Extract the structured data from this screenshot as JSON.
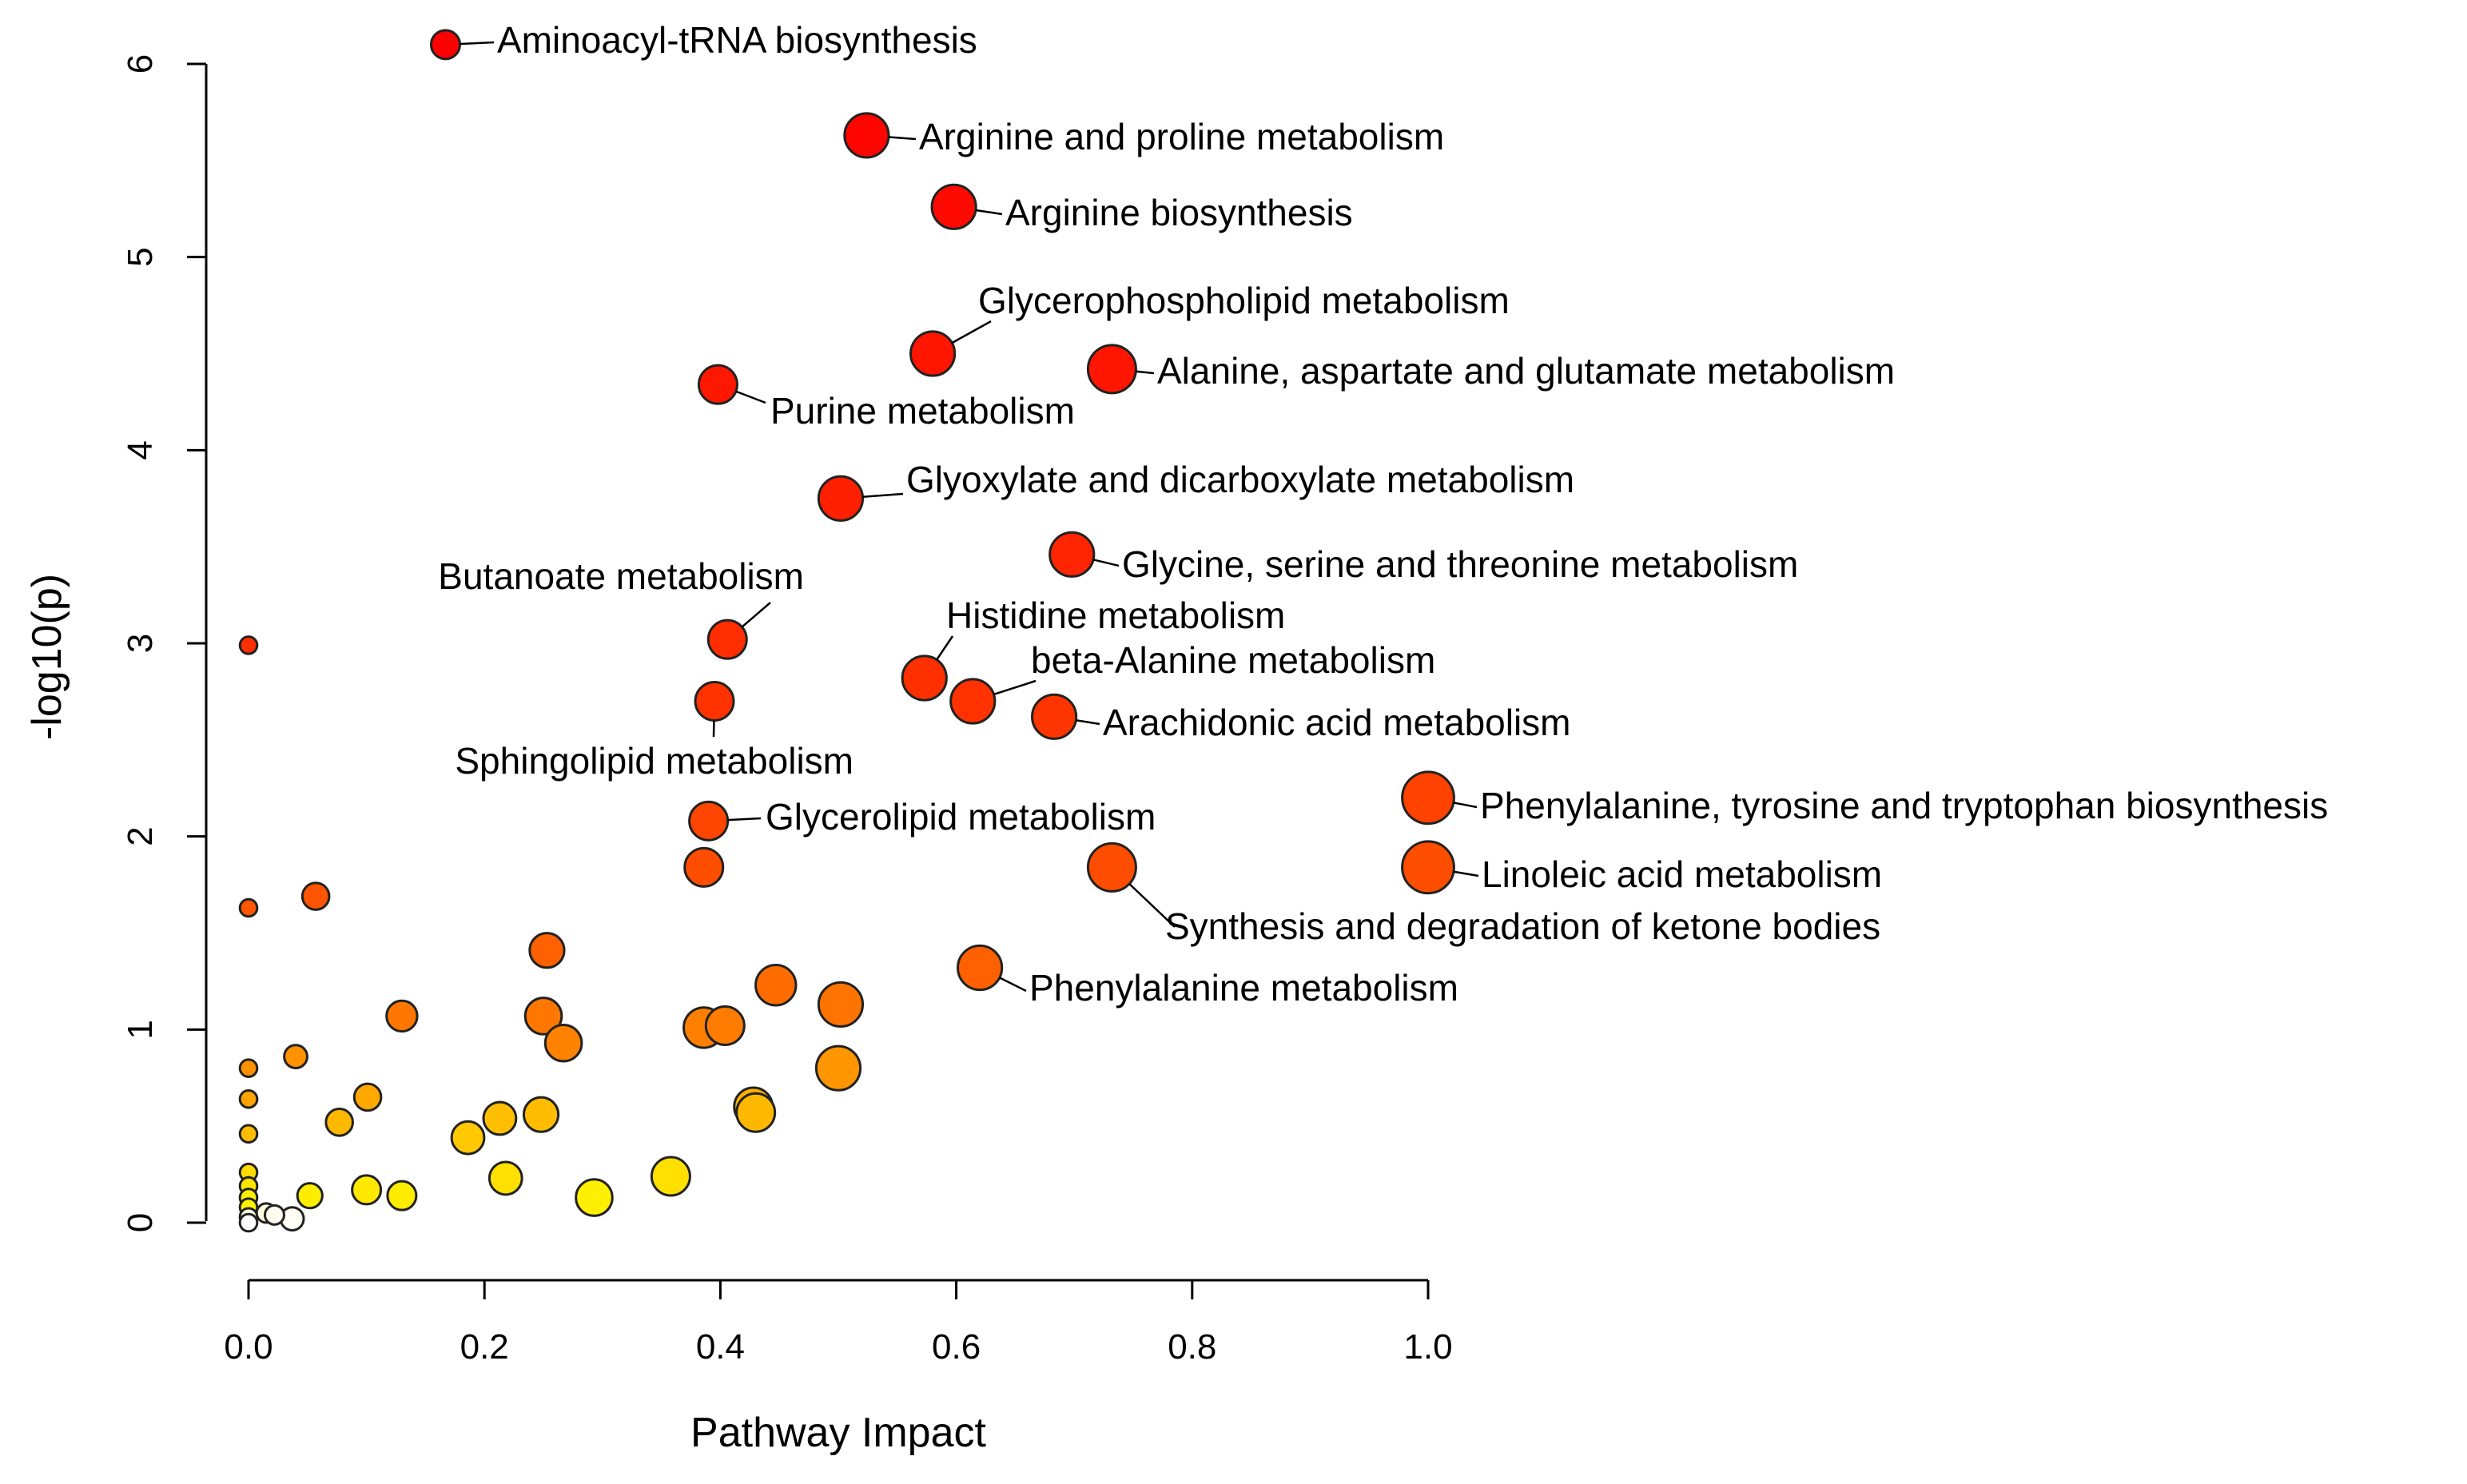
{
  "chart_data": {
    "type": "scatter",
    "title": "",
    "xlabel": "Pathway Impact",
    "ylabel": "-log10(p)",
    "xlim": [
      0,
      1
    ],
    "ylim": [
      0,
      6
    ],
    "x_ticks": [
      "0.0",
      "0.2",
      "0.4",
      "0.6",
      "0.8",
      "1.0"
    ],
    "y_ticks": [
      "0",
      "1",
      "2",
      "3",
      "4",
      "5",
      "6"
    ],
    "grid": false,
    "legend": "none",
    "labeled_points": [
      {
        "name": "Aminoacyl-tRNA biosynthesis",
        "x": 0.167,
        "y": 6.1,
        "size": 1.5,
        "color": "#ff0000"
      },
      {
        "name": "Arginine and proline metabolism",
        "x": 0.524,
        "y": 5.63,
        "size": 2.3,
        "color": "#ff0500"
      },
      {
        "name": "Arginine biosynthesis",
        "x": 0.598,
        "y": 5.26,
        "size": 2.3,
        "color": "#ff0a00"
      },
      {
        "name": "Glycerophospholipid metabolism",
        "x": 0.58,
        "y": 4.5,
        "size": 2.3,
        "color": "#ff1500"
      },
      {
        "name": "Alanine, aspartate and glutamate metabolism",
        "x": 0.732,
        "y": 4.42,
        "size": 2.5,
        "color": "#ff1500"
      },
      {
        "name": "Purine metabolism",
        "x": 0.398,
        "y": 4.34,
        "size": 2.0,
        "color": "#ff1700"
      },
      {
        "name": "Glyoxylate and dicarboxylate metabolism",
        "x": 0.502,
        "y": 3.75,
        "size": 2.3,
        "color": "#ff2000"
      },
      {
        "name": "Glycine, serine and threonine metabolism",
        "x": 0.698,
        "y": 3.46,
        "size": 2.3,
        "color": "#ff2500"
      },
      {
        "name": "Butanoate metabolism",
        "x": 0.406,
        "y": 3.02,
        "size": 2.0,
        "color": "#ff2d00"
      },
      {
        "name": "Histidine metabolism",
        "x": 0.573,
        "y": 2.82,
        "size": 2.3,
        "color": "#ff3000"
      },
      {
        "name": "beta-Alanine metabolism",
        "x": 0.614,
        "y": 2.7,
        "size": 2.3,
        "color": "#ff3200"
      },
      {
        "name": "Sphingolipid metabolism",
        "x": 0.395,
        "y": 2.7,
        "size": 2.0,
        "color": "#ff3200"
      },
      {
        "name": "Arachidonic acid metabolism",
        "x": 0.683,
        "y": 2.62,
        "size": 2.3,
        "color": "#ff3500"
      },
      {
        "name": "Phenylalanine, tyrosine and tryptophan biosynthesis",
        "x": 1.0,
        "y": 2.2,
        "size": 2.7,
        "color": "#ff4200"
      },
      {
        "name": "Glycerolipid metabolism",
        "x": 0.39,
        "y": 2.08,
        "size": 2.0,
        "color": "#ff4500"
      },
      {
        "name": "Linoleic acid metabolism",
        "x": 1.0,
        "y": 1.84,
        "size": 2.7,
        "color": "#ff4d00"
      },
      {
        "name": "Synthesis and degradation of ketone bodies",
        "x": 0.732,
        "y": 1.84,
        "size": 2.5,
        "color": "#ff4d00"
      },
      {
        "name": "Phenylalanine metabolism",
        "x": 0.62,
        "y": 1.32,
        "size": 2.3,
        "color": "#ff6100"
      }
    ],
    "unlabeled_points": [
      {
        "x": 0.0,
        "y": 2.99,
        "size": 0.9,
        "color": "#ff2e00"
      },
      {
        "x": 0.386,
        "y": 1.84,
        "size": 2.0,
        "color": "#ff4d00"
      },
      {
        "x": 0.0,
        "y": 1.63,
        "size": 0.9,
        "color": "#ff5600"
      },
      {
        "x": 0.057,
        "y": 1.69,
        "size": 1.4,
        "color": "#ff5400"
      },
      {
        "x": 0.253,
        "y": 1.41,
        "size": 1.8,
        "color": "#ff6000"
      },
      {
        "x": 0.13,
        "y": 1.07,
        "size": 1.6,
        "color": "#ff7700"
      },
      {
        "x": 0.25,
        "y": 1.07,
        "size": 1.9,
        "color": "#ff7700"
      },
      {
        "x": 0.267,
        "y": 0.93,
        "size": 1.9,
        "color": "#ff8200"
      },
      {
        "x": 0.447,
        "y": 1.23,
        "size": 2.1,
        "color": "#ff6c00"
      },
      {
        "x": 0.502,
        "y": 1.13,
        "size": 2.3,
        "color": "#ff7300"
      },
      {
        "x": 0.404,
        "y": 1.02,
        "size": 2.0,
        "color": "#ff7c00"
      },
      {
        "x": 0.386,
        "y": 1.01,
        "size": 2.1,
        "color": "#ff8000"
      },
      {
        "x": 0.5,
        "y": 0.8,
        "size": 2.3,
        "color": "#ff9500"
      },
      {
        "x": 0.0,
        "y": 0.8,
        "size": 0.9,
        "color": "#ff9000"
      },
      {
        "x": 0.04,
        "y": 0.86,
        "size": 1.2,
        "color": "#ff9200"
      },
      {
        "x": 0.0,
        "y": 0.64,
        "size": 0.9,
        "color": "#ffa400"
      },
      {
        "x": 0.101,
        "y": 0.65,
        "size": 1.4,
        "color": "#ffa800"
      },
      {
        "x": 0.077,
        "y": 0.52,
        "size": 1.4,
        "color": "#ffb800"
      },
      {
        "x": 0.0,
        "y": 0.46,
        "size": 0.9,
        "color": "#ffbd00"
      },
      {
        "x": 0.428,
        "y": 0.6,
        "size": 2.0,
        "color": "#ffb000"
      },
      {
        "x": 0.43,
        "y": 0.57,
        "size": 2.0,
        "color": "#ffb800"
      },
      {
        "x": 0.248,
        "y": 0.56,
        "size": 1.8,
        "color": "#ffbc00"
      },
      {
        "x": 0.213,
        "y": 0.54,
        "size": 1.7,
        "color": "#ffbf00"
      },
      {
        "x": 0.186,
        "y": 0.44,
        "size": 1.7,
        "color": "#ffc800"
      },
      {
        "x": 0.0,
        "y": 0.26,
        "size": 0.9,
        "color": "#ffdb00"
      },
      {
        "x": 0.0,
        "y": 0.19,
        "size": 0.9,
        "color": "#ffe500"
      },
      {
        "x": 0.0,
        "y": 0.13,
        "size": 0.9,
        "color": "#ffee00"
      },
      {
        "x": 0.0,
        "y": 0.08,
        "size": 0.9,
        "color": "#fff200"
      },
      {
        "x": 0.0,
        "y": 0.03,
        "size": 0.9,
        "color": "#fffce0"
      },
      {
        "x": 0.0,
        "y": 0.0,
        "size": 0.9,
        "color": "#ffffff"
      },
      {
        "x": 0.052,
        "y": 0.14,
        "size": 1.3,
        "color": "#ffed00"
      },
      {
        "x": 0.1,
        "y": 0.17,
        "size": 1.5,
        "color": "#ffe900"
      },
      {
        "x": 0.13,
        "y": 0.14,
        "size": 1.5,
        "color": "#ffed00"
      },
      {
        "x": 0.218,
        "y": 0.23,
        "size": 1.7,
        "color": "#ffe000"
      },
      {
        "x": 0.293,
        "y": 0.13,
        "size": 1.9,
        "color": "#ffef00"
      },
      {
        "x": 0.358,
        "y": 0.24,
        "size": 2.0,
        "color": "#ffe000"
      },
      {
        "x": 0.015,
        "y": 0.05,
        "size": 1.0,
        "color": "#fffce0"
      },
      {
        "x": 0.022,
        "y": 0.04,
        "size": 1.0,
        "color": "#fffdf0"
      },
      {
        "x": 0.037,
        "y": 0.02,
        "size": 1.2,
        "color": "#fffef5"
      }
    ]
  }
}
